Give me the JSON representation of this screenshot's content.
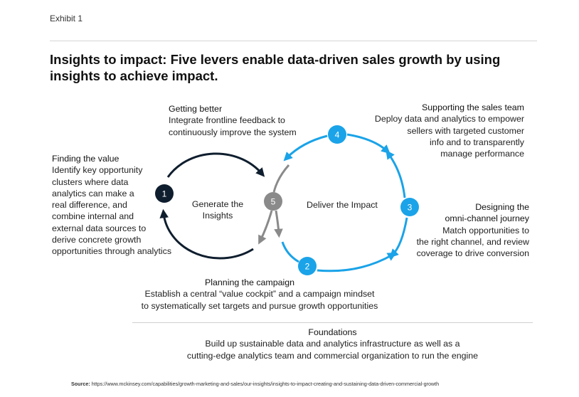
{
  "exhibit_label": "Exhibit 1",
  "title": "Insights to impact: Five levers enable data-driven sales growth by using insights to achieve impact.",
  "levers": {
    "getting_better": {
      "heading": "Getting better",
      "body": "Integrate frontline feedback to\ncontinuously improve the system"
    },
    "finding_value": {
      "heading": "Finding the value",
      "body": "Identify key opportunity\nclusters where data\nanalytics can make a\nreal difference, and\ncombine internal and\nexternal data sources to\nderive concrete growth\nopportunities through analytics"
    },
    "supporting_sales": {
      "heading": "Supporting the sales team",
      "body": "Deploy data and analytics to empower\nsellers with targeted customer\ninfo and to transparently\nmanage performance"
    },
    "omni_channel": {
      "heading": "Designing the\nomni-channel journey",
      "body": "Match opportunities to\nthe right channel, and review\ncoverage to drive conversion"
    },
    "planning_campaign": {
      "heading": "Planning the campaign",
      "body": "Establish a central “value cockpit” and a campaign mindset\nto systematically set targets and pursue growth opportunities"
    }
  },
  "loops": {
    "left_label": "Generate the\nInsights",
    "right_label": "Deliver the Impact"
  },
  "nodes": [
    "1",
    "2",
    "3",
    "4",
    "5"
  ],
  "colors": {
    "dark_navy": "#0f1e2e",
    "blue": "#1aa3e8",
    "gray": "#8a8a8a"
  },
  "foundations": {
    "heading": "Foundations",
    "body": "Build up sustainable data and analytics infrastructure as well as a\ncutting-edge analytics team and commercial organization to run the engine"
  },
  "source": {
    "label": "Source:",
    "url": "https://www.mckinsey.com/capabilities/growth-marketing-and-sales/our-insights/insights-to-impact-creating-and-sustaining-data-driven-commercial-growth"
  }
}
